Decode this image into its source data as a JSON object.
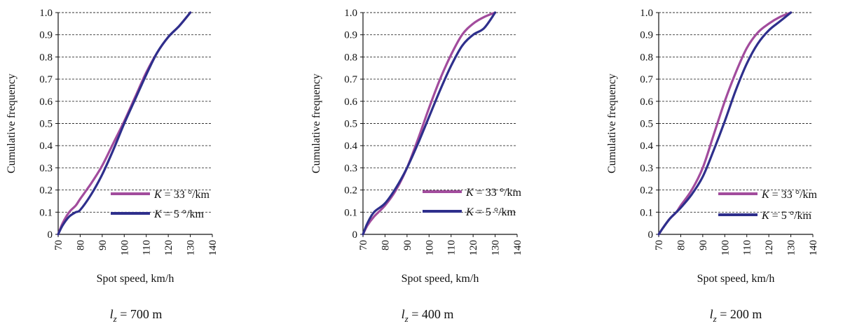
{
  "chart_data": [
    {
      "type": "line",
      "panel_label": {
        "var": "l",
        "sub": "z",
        "rest": " = 700 m"
      },
      "xlabel": "Spot speed,  km/h",
      "ylabel": "Cumulative frequency",
      "xlim": [
        70,
        140
      ],
      "ylim": [
        0,
        1.0
      ],
      "x_ticks": [
        "70",
        "80",
        "90",
        "100",
        "110",
        "120",
        "130",
        "140"
      ],
      "y_ticks": [
        "0",
        "0.1",
        "0.2",
        "0.3",
        "0.4",
        "0.5",
        "0.6",
        "0.7",
        "0.8",
        "0.9",
        "1.0"
      ],
      "grid": "horizontal dashed",
      "legend_position": "lower-right",
      "series": [
        {
          "name": "K = 33 °/km",
          "legend_var": "K",
          "legend_rest": " = 33 °/km",
          "color": "#a24c9d",
          "x": [
            70,
            72,
            75,
            78,
            80,
            85,
            90,
            95,
            100,
            105,
            110,
            115,
            120,
            125,
            130
          ],
          "y": [
            0,
            0.05,
            0.1,
            0.13,
            0.16,
            0.23,
            0.31,
            0.41,
            0.51,
            0.62,
            0.73,
            0.82,
            0.89,
            0.94,
            1.0
          ]
        },
        {
          "name": "K = 5 °/km",
          "legend_var": "K",
          "legend_rest": " = 5 °/km",
          "color": "#2e2f8c",
          "x": [
            70,
            72,
            75,
            78,
            80,
            85,
            90,
            95,
            100,
            105,
            110,
            115,
            120,
            125,
            130
          ],
          "y": [
            0,
            0.04,
            0.08,
            0.1,
            0.11,
            0.18,
            0.27,
            0.38,
            0.5,
            0.61,
            0.72,
            0.82,
            0.89,
            0.94,
            1.0
          ]
        }
      ]
    },
    {
      "type": "line",
      "panel_label": {
        "var": "l",
        "sub": "z",
        "rest": " = 400 m"
      },
      "xlabel": "Spot speed, km/h",
      "ylabel": "Cumulative frequency",
      "xlim": [
        70,
        140
      ],
      "ylim": [
        0,
        1.0
      ],
      "x_ticks": [
        "70",
        "80",
        "90",
        "100",
        "110",
        "120",
        "130",
        "140"
      ],
      "y_ticks": [
        "0",
        "0.1",
        "0.2",
        "0.3",
        "0.4",
        "0.5",
        "0.6",
        "0.7",
        "0.8",
        "0.9",
        "1.0"
      ],
      "grid": "horizontal dashed",
      "legend_position": "lower-right",
      "series": [
        {
          "name": "K = 33 °/km",
          "legend_var": "K",
          "legend_rest": " = 33 °/km",
          "color": "#a24c9d",
          "x": [
            70,
            72,
            75,
            80,
            85,
            90,
            95,
            100,
            105,
            110,
            115,
            120,
            125,
            130
          ],
          "y": [
            0,
            0.04,
            0.08,
            0.13,
            0.2,
            0.3,
            0.43,
            0.57,
            0.7,
            0.81,
            0.9,
            0.95,
            0.98,
            1.0
          ]
        },
        {
          "name": "K = 5 °/km",
          "legend_var": "K",
          "legend_rest": " = 5 °/km",
          "color": "#2e2f8c",
          "x": [
            70,
            72,
            75,
            80,
            85,
            90,
            95,
            100,
            105,
            110,
            115,
            120,
            125,
            130
          ],
          "y": [
            0,
            0.05,
            0.1,
            0.14,
            0.21,
            0.3,
            0.41,
            0.53,
            0.65,
            0.76,
            0.85,
            0.9,
            0.93,
            1.0
          ]
        }
      ]
    },
    {
      "type": "line",
      "panel_label": {
        "var": "l",
        "sub": "z",
        "rest": " = 200 m"
      },
      "xlabel": "Spot speed, km/h",
      "ylabel": "Cumulative frequency",
      "xlim": [
        70,
        140
      ],
      "ylim": [
        0,
        1.0
      ],
      "x_ticks": [
        "70",
        "80",
        "90",
        "100",
        "110",
        "120",
        "130",
        "140"
      ],
      "y_ticks": [
        "0",
        "0.1",
        "0.2",
        "0.3",
        "0.4",
        "0.5",
        "0.6",
        "0.7",
        "0.8",
        "0.9",
        "1.0"
      ],
      "grid": "horizontal dashed",
      "legend_position": "lower-right",
      "series": [
        {
          "name": "K = 33 °/km",
          "legend_var": "K",
          "legend_rest": " = 33 °/km",
          "color": "#a24c9d",
          "x": [
            70,
            72,
            75,
            78,
            80,
            85,
            90,
            95,
            100,
            105,
            110,
            115,
            120,
            125,
            130
          ],
          "y": [
            0,
            0.03,
            0.07,
            0.1,
            0.13,
            0.2,
            0.3,
            0.45,
            0.6,
            0.73,
            0.84,
            0.91,
            0.95,
            0.98,
            1.0
          ]
        },
        {
          "name": "K = 5 °/km",
          "legend_var": "K",
          "legend_rest": " = 5 °/km",
          "color": "#2e2f8c",
          "x": [
            70,
            72,
            75,
            78,
            80,
            85,
            90,
            95,
            100,
            105,
            110,
            115,
            120,
            125,
            130
          ],
          "y": [
            0,
            0.03,
            0.07,
            0.1,
            0.12,
            0.18,
            0.26,
            0.38,
            0.51,
            0.65,
            0.77,
            0.86,
            0.92,
            0.96,
            1.0
          ]
        }
      ]
    }
  ]
}
